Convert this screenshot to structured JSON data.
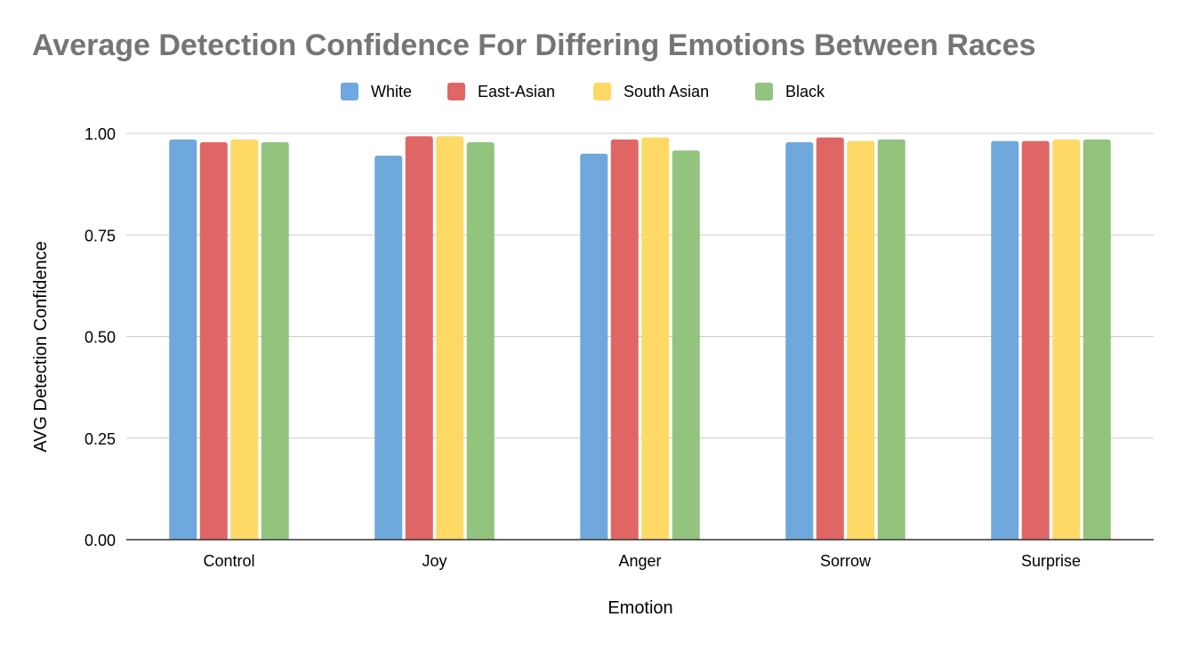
{
  "chart_data": {
    "type": "bar",
    "title": "Average Detection Confidence For Differing Emotions Between Races",
    "xlabel": "Emotion",
    "ylabel": "AVG Detection Confidence",
    "categories": [
      "Control",
      "Joy",
      "Anger",
      "Sorrow",
      "Surprise"
    ],
    "ylim": [
      0,
      1
    ],
    "yticks": [
      "0.00",
      "0.25",
      "0.50",
      "0.75",
      "1.00"
    ],
    "grid": true,
    "legend_position": "top",
    "series": [
      {
        "name": "White",
        "color": "#6fa8dc",
        "values": [
          0.985,
          0.945,
          0.95,
          0.978,
          0.981
        ]
      },
      {
        "name": "East-Asian",
        "color": "#e06666",
        "values": [
          0.978,
          0.993,
          0.985,
          0.99,
          0.981
        ]
      },
      {
        "name": "South Asian",
        "color": "#ffd966",
        "values": [
          0.985,
          0.993,
          0.99,
          0.981,
          0.985
        ]
      },
      {
        "name": "Black",
        "color": "#93c47d",
        "values": [
          0.978,
          0.978,
          0.958,
          0.985,
          0.985
        ]
      }
    ]
  }
}
